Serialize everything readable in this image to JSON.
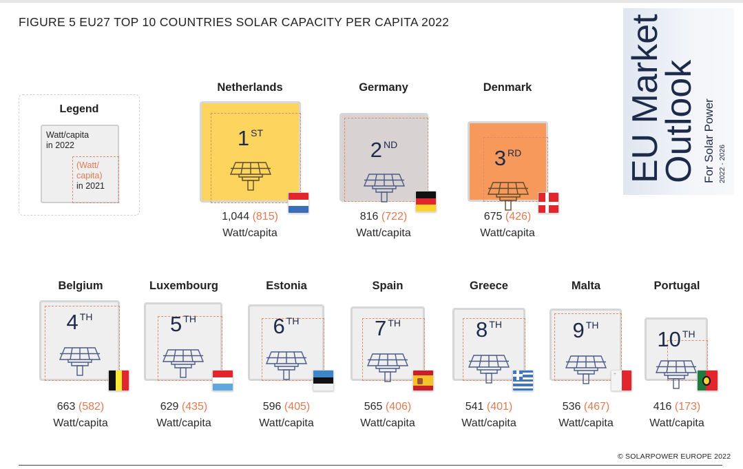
{
  "title": "FIGURE 5 EU27 TOP 10 COUNTRIES SOLAR CAPACITY PER CAPITA 2022",
  "legend": {
    "title": "Legend",
    "current_line1": "Watt/capita",
    "current_line2": "in 2022",
    "previous_line1": "(Watt/",
    "previous_line2": "capita)",
    "previous_line3": "in 2021"
  },
  "cover": {
    "line1": "EU Market",
    "line2": "Outlook",
    "line3": "For Solar Power",
    "line4": "2022 - 2026"
  },
  "copyright": "© SOLARPOWER EUROPE 2022",
  "colors": {
    "gold": "#fcd45e",
    "taupe": "#d8d2d2",
    "orange": "#f7995a",
    "default_box": "#efefef",
    "dashed_border": "#e08a66",
    "rank_text": "#1e2a4a"
  },
  "chart_data": {
    "type": "table",
    "title": "FIGURE 5 EU27 TOP 10 COUNTRIES SOLAR CAPACITY PER CAPITA 2022",
    "unit": "Watt/capita",
    "series": [
      {
        "name": "2022",
        "values": [
          1044,
          816,
          675,
          663,
          629,
          596,
          565,
          541,
          536,
          416
        ]
      },
      {
        "name": "2021",
        "values": [
          815,
          722,
          426,
          582,
          435,
          405,
          406,
          401,
          467,
          173
        ]
      }
    ],
    "categories": [
      "Netherlands",
      "Germany",
      "Denmark",
      "Belgium",
      "Luxembourg",
      "Estonia",
      "Spain",
      "Greece",
      "Malta",
      "Portugal"
    ],
    "countries": [
      {
        "name": "Netherlands",
        "rank": "1",
        "suffix": "ST",
        "value_2022": "1,044",
        "value_2021": "(815)",
        "v2022": 1044,
        "v2021": 815,
        "flag": "netherlands-flag",
        "fill": "gold"
      },
      {
        "name": "Germany",
        "rank": "2",
        "suffix": "ND",
        "value_2022": "816",
        "value_2021": "(722)",
        "v2022": 816,
        "v2021": 722,
        "flag": "germany-flag",
        "fill": "taupe"
      },
      {
        "name": "Denmark",
        "rank": "3",
        "suffix": "RD",
        "value_2022": "675",
        "value_2021": "(426)",
        "v2022": 675,
        "v2021": 426,
        "flag": "denmark-flag",
        "fill": "orange"
      },
      {
        "name": "Belgium",
        "rank": "4",
        "suffix": "TH",
        "value_2022": "663",
        "value_2021": "(582)",
        "v2022": 663,
        "v2021": 582,
        "flag": "belgium-flag",
        "fill": "default_box"
      },
      {
        "name": "Luxembourg",
        "rank": "5",
        "suffix": "TH",
        "value_2022": "629",
        "value_2021": "(435)",
        "v2022": 629,
        "v2021": 435,
        "flag": "luxembourg-flag",
        "fill": "default_box"
      },
      {
        "name": "Estonia",
        "rank": "6",
        "suffix": "TH",
        "value_2022": "596",
        "value_2021": "(405)",
        "v2022": 596,
        "v2021": 405,
        "flag": "estonia-flag",
        "fill": "default_box"
      },
      {
        "name": "Spain",
        "rank": "7",
        "suffix": "TH",
        "value_2022": "565",
        "value_2021": "(406)",
        "v2022": 565,
        "v2021": 406,
        "flag": "spain-flag",
        "fill": "default_box"
      },
      {
        "name": "Greece",
        "rank": "8",
        "suffix": "TH",
        "value_2022": "541",
        "value_2021": "(401)",
        "v2022": 541,
        "v2021": 401,
        "flag": "greece-flag",
        "fill": "default_box"
      },
      {
        "name": "Malta",
        "rank": "9",
        "suffix": "TH",
        "value_2022": "536",
        "value_2021": "(467)",
        "v2022": 536,
        "v2021": 467,
        "flag": "malta-flag",
        "fill": "default_box"
      },
      {
        "name": "Portugal",
        "rank": "10",
        "suffix": "TH",
        "value_2022": "416",
        "value_2021": "(173)",
        "v2022": 416,
        "v2021": 173,
        "flag": "portugal-flag",
        "fill": "default_box"
      }
    ]
  }
}
